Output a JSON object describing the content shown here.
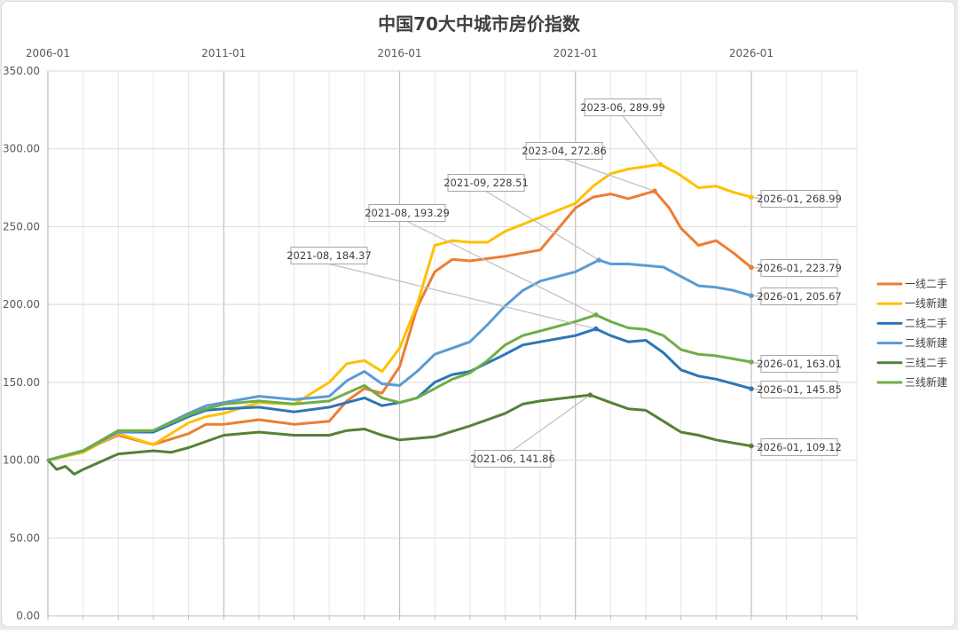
{
  "chart_data": {
    "type": "line",
    "title": "中国70大中城市房价指数",
    "x_tick_labels": [
      "2006-01",
      "2011-01",
      "2016-01",
      "2021-01",
      "2026-01"
    ],
    "x_tick_years": [
      2006,
      2011,
      2016,
      2021,
      2026
    ],
    "x_range": [
      "2006-01",
      "2029-01"
    ],
    "ylim": [
      0,
      350
    ],
    "y_ticks": [
      "0.00",
      "50.00",
      "100.00",
      "150.00",
      "200.00",
      "250.00",
      "300.00",
      "350.00"
    ],
    "grid": true,
    "legend_position": "right",
    "series": [
      {
        "name": "一线二手",
        "color": "#ED7D31",
        "points": [
          [
            "2006-01",
            100
          ],
          [
            "2007-01",
            106
          ],
          [
            "2008-01",
            116
          ],
          [
            "2009-01",
            110
          ],
          [
            "2010-01",
            117
          ],
          [
            "2010-07",
            123
          ],
          [
            "2011-01",
            123
          ],
          [
            "2012-01",
            126
          ],
          [
            "2013-01",
            123
          ],
          [
            "2014-01",
            125
          ],
          [
            "2014-07",
            138
          ],
          [
            "2015-01",
            146
          ],
          [
            "2015-07",
            143
          ],
          [
            "2016-01",
            160
          ],
          [
            "2016-07",
            198
          ],
          [
            "2017-01",
            221
          ],
          [
            "2017-07",
            229
          ],
          [
            "2018-01",
            228
          ],
          [
            "2019-01",
            231
          ],
          [
            "2020-01",
            235
          ],
          [
            "2021-01",
            262
          ],
          [
            "2021-07",
            269
          ],
          [
            "2022-01",
            271
          ],
          [
            "2022-07",
            268
          ],
          [
            "2023-04",
            272.86
          ],
          [
            "2023-09",
            262
          ],
          [
            "2024-01",
            249
          ],
          [
            "2024-07",
            238
          ],
          [
            "2025-01",
            241
          ],
          [
            "2025-07",
            233
          ],
          [
            "2026-01",
            223.79
          ]
        ]
      },
      {
        "name": "一线新建",
        "color": "#FFC000",
        "points": [
          [
            "2006-01",
            100
          ],
          [
            "2007-01",
            105
          ],
          [
            "2008-01",
            117
          ],
          [
            "2009-01",
            110
          ],
          [
            "2010-01",
            124
          ],
          [
            "2010-07",
            128
          ],
          [
            "2011-01",
            130
          ],
          [
            "2012-01",
            137
          ],
          [
            "2013-01",
            136
          ],
          [
            "2014-01",
            150
          ],
          [
            "2014-07",
            162
          ],
          [
            "2015-01",
            164
          ],
          [
            "2015-07",
            157
          ],
          [
            "2016-01",
            172
          ],
          [
            "2016-07",
            200
          ],
          [
            "2017-01",
            238
          ],
          [
            "2017-07",
            241
          ],
          [
            "2018-01",
            240
          ],
          [
            "2018-07",
            240
          ],
          [
            "2019-01",
            247
          ],
          [
            "2020-01",
            256
          ],
          [
            "2021-01",
            265
          ],
          [
            "2021-07",
            276
          ],
          [
            "2022-01",
            284
          ],
          [
            "2022-07",
            287
          ],
          [
            "2023-06",
            289.99
          ],
          [
            "2023-12",
            284
          ],
          [
            "2024-07",
            275
          ],
          [
            "2025-01",
            276
          ],
          [
            "2025-07",
            272
          ],
          [
            "2026-01",
            268.99
          ]
        ]
      },
      {
        "name": "二线二手",
        "color": "#2E75B6",
        "points": [
          [
            "2006-01",
            100
          ],
          [
            "2007-01",
            106
          ],
          [
            "2008-01",
            118
          ],
          [
            "2009-01",
            118
          ],
          [
            "2010-01",
            128
          ],
          [
            "2010-07",
            132
          ],
          [
            "2011-01",
            133
          ],
          [
            "2012-01",
            134
          ],
          [
            "2013-01",
            131
          ],
          [
            "2014-01",
            134
          ],
          [
            "2015-01",
            140
          ],
          [
            "2015-07",
            135
          ],
          [
            "2016-01",
            137
          ],
          [
            "2016-07",
            140
          ],
          [
            "2017-01",
            150
          ],
          [
            "2017-07",
            155
          ],
          [
            "2018-01",
            157
          ],
          [
            "2019-01",
            168
          ],
          [
            "2019-07",
            174
          ],
          [
            "2020-01",
            176
          ],
          [
            "2021-01",
            180
          ],
          [
            "2021-08",
            184.37
          ],
          [
            "2022-01",
            180
          ],
          [
            "2022-07",
            176
          ],
          [
            "2023-01",
            177
          ],
          [
            "2023-07",
            169
          ],
          [
            "2024-01",
            158
          ],
          [
            "2024-07",
            154
          ],
          [
            "2025-01",
            152
          ],
          [
            "2025-07",
            149
          ],
          [
            "2026-01",
            145.85
          ]
        ]
      },
      {
        "name": "二线新建",
        "color": "#5B9BD5",
        "points": [
          [
            "2006-01",
            100
          ],
          [
            "2007-01",
            106
          ],
          [
            "2008-01",
            118
          ],
          [
            "2009-01",
            119
          ],
          [
            "2010-01",
            130
          ],
          [
            "2010-07",
            135
          ],
          [
            "2011-01",
            137
          ],
          [
            "2012-01",
            141
          ],
          [
            "2013-01",
            139
          ],
          [
            "2014-01",
            141
          ],
          [
            "2014-07",
            151
          ],
          [
            "2015-01",
            157
          ],
          [
            "2015-07",
            149
          ],
          [
            "2016-01",
            148
          ],
          [
            "2016-07",
            157
          ],
          [
            "2017-01",
            168
          ],
          [
            "2017-07",
            172
          ],
          [
            "2018-01",
            176
          ],
          [
            "2018-07",
            187
          ],
          [
            "2019-01",
            199
          ],
          [
            "2019-07",
            209
          ],
          [
            "2020-01",
            215
          ],
          [
            "2021-01",
            221
          ],
          [
            "2021-09",
            228.51
          ],
          [
            "2022-01",
            226
          ],
          [
            "2022-07",
            226
          ],
          [
            "2023-01",
            225
          ],
          [
            "2023-07",
            224
          ],
          [
            "2024-01",
            218
          ],
          [
            "2024-07",
            212
          ],
          [
            "2025-01",
            211
          ],
          [
            "2025-07",
            209
          ],
          [
            "2026-01",
            205.67
          ]
        ]
      },
      {
        "name": "三线二手",
        "color": "#548235",
        "points": [
          [
            "2006-01",
            100
          ],
          [
            "2006-04",
            94
          ],
          [
            "2006-07",
            96
          ],
          [
            "2006-10",
            91
          ],
          [
            "2007-01",
            94
          ],
          [
            "2008-01",
            104
          ],
          [
            "2009-01",
            106
          ],
          [
            "2009-07",
            105
          ],
          [
            "2010-01",
            108
          ],
          [
            "2011-01",
            116
          ],
          [
            "2012-01",
            118
          ],
          [
            "2013-01",
            116
          ],
          [
            "2014-01",
            116
          ],
          [
            "2014-07",
            119
          ],
          [
            "2015-01",
            120
          ],
          [
            "2015-07",
            116
          ],
          [
            "2016-01",
            113
          ],
          [
            "2017-01",
            115
          ],
          [
            "2018-01",
            122
          ],
          [
            "2019-01",
            130
          ],
          [
            "2019-07",
            136
          ],
          [
            "2020-01",
            138
          ],
          [
            "2021-06",
            141.86
          ],
          [
            "2022-01",
            137
          ],
          [
            "2022-07",
            133
          ],
          [
            "2023-01",
            132
          ],
          [
            "2023-07",
            125
          ],
          [
            "2024-01",
            118
          ],
          [
            "2024-07",
            116
          ],
          [
            "2025-01",
            113
          ],
          [
            "2025-07",
            111
          ],
          [
            "2026-01",
            109.12
          ]
        ]
      },
      {
        "name": "三线新建",
        "color": "#70AD47",
        "points": [
          [
            "2006-01",
            100
          ],
          [
            "2007-01",
            106
          ],
          [
            "2008-01",
            119
          ],
          [
            "2009-01",
            119
          ],
          [
            "2010-01",
            129
          ],
          [
            "2010-07",
            133
          ],
          [
            "2011-01",
            136
          ],
          [
            "2012-01",
            138
          ],
          [
            "2013-01",
            136
          ],
          [
            "2014-01",
            138
          ],
          [
            "2014-07",
            143
          ],
          [
            "2015-01",
            148
          ],
          [
            "2015-07",
            140
          ],
          [
            "2016-01",
            137
          ],
          [
            "2016-07",
            140
          ],
          [
            "2017-01",
            146
          ],
          [
            "2017-07",
            152
          ],
          [
            "2018-01",
            156
          ],
          [
            "2018-07",
            164
          ],
          [
            "2019-01",
            174
          ],
          [
            "2019-07",
            180
          ],
          [
            "2020-01",
            183
          ],
          [
            "2021-01",
            189
          ],
          [
            "2021-08",
            193.29
          ],
          [
            "2022-01",
            189
          ],
          [
            "2022-07",
            185
          ],
          [
            "2023-01",
            184
          ],
          [
            "2023-07",
            180
          ],
          [
            "2024-01",
            171
          ],
          [
            "2024-07",
            168
          ],
          [
            "2025-01",
            167
          ],
          [
            "2025-07",
            165
          ],
          [
            "2026-01",
            163.01
          ]
        ]
      }
    ],
    "annotations": [
      {
        "text": "2023-06, 289.99",
        "x": "2023-06",
        "y": 289.99,
        "color": "#FFC000"
      },
      {
        "text": "2023-04, 272.86",
        "x": "2023-04",
        "y": 272.86,
        "color": "#ED7D31"
      },
      {
        "text": "2021-09, 228.51",
        "x": "2021-09",
        "y": 228.51,
        "color": "#5B9BD5"
      },
      {
        "text": "2021-08, 193.29",
        "x": "2021-08",
        "y": 193.29,
        "color": "#70AD47"
      },
      {
        "text": "2021-08, 184.37",
        "x": "2021-08",
        "y": 184.37,
        "color": "#2E75B6"
      },
      {
        "text": "2021-06, 141.86",
        "x": "2021-06",
        "y": 141.86,
        "color": "#548235"
      },
      {
        "text": "2026-01, 268.99",
        "x": "2026-01",
        "y": 268.99,
        "color": "#FFC000"
      },
      {
        "text": "2026-01, 223.79",
        "x": "2026-01",
        "y": 223.79,
        "color": "#ED7D31"
      },
      {
        "text": "2026-01, 205.67",
        "x": "2026-01",
        "y": 205.67,
        "color": "#5B9BD5"
      },
      {
        "text": "2026-01, 163.01",
        "x": "2026-01",
        "y": 163.01,
        "color": "#70AD47"
      },
      {
        "text": "2026-01, 145.85",
        "x": "2026-01",
        "y": 145.85,
        "color": "#2E75B6"
      },
      {
        "text": "2026-01, 109.12",
        "x": "2026-01",
        "y": 109.12,
        "color": "#548235"
      }
    ]
  }
}
